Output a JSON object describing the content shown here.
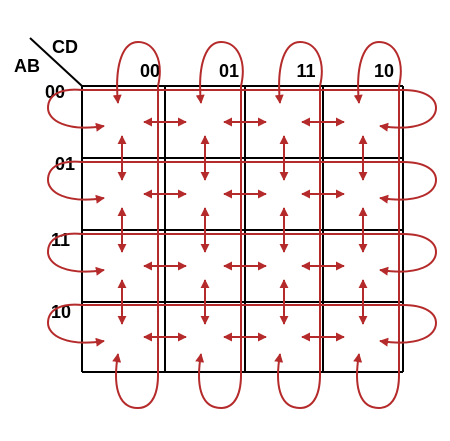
{
  "corner": {
    "row_variables": "AB",
    "column_variables": "CD"
  },
  "column_labels": [
    "00",
    "01",
    "11",
    "10"
  ],
  "row_labels": [
    "00",
    "01",
    "11",
    "10"
  ],
  "colors": {
    "grid": "#000000",
    "arrow": "#b52a2a",
    "background": "#ffffff"
  },
  "adjacency": {
    "horizontal_neighbor_pairs": 12,
    "vertical_neighbor_pairs": 12,
    "column_wraparounds": 4,
    "row_wraparounds": 4
  }
}
